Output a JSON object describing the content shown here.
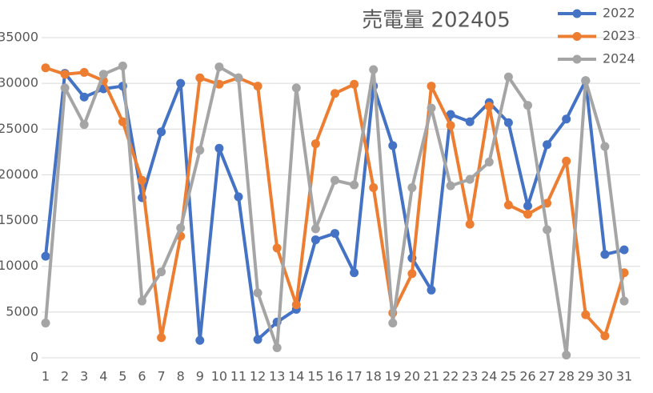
{
  "chart_data": {
    "type": "line",
    "title": "売電量 202405",
    "categories": [
      "1",
      "2",
      "3",
      "4",
      "5",
      "6",
      "7",
      "8",
      "9",
      "10",
      "11",
      "12",
      "13",
      "14",
      "15",
      "16",
      "17",
      "18",
      "19",
      "20",
      "21",
      "22",
      "23",
      "24",
      "25",
      "26",
      "27",
      "28",
      "29",
      "30",
      "31"
    ],
    "series": [
      {
        "name": "2022",
        "color": "#4472c4",
        "values": [
          11100,
          31100,
          28500,
          29400,
          29700,
          17500,
          24700,
          30000,
          1900,
          22900,
          17600,
          2000,
          3900,
          5300,
          12900,
          13600,
          9300,
          29700,
          23200,
          10900,
          7400,
          26600,
          25800,
          27900,
          25700,
          16600,
          23300,
          26100,
          30300,
          11300,
          11800
        ]
      },
      {
        "name": "2023",
        "color": "#ed7d31",
        "values": [
          31700,
          31000,
          31200,
          30300,
          25800,
          19400,
          2200,
          13300,
          30600,
          29900,
          30600,
          29700,
          12000,
          5800,
          23400,
          28900,
          29900,
          18600,
          4900,
          9200,
          29700,
          25400,
          14600,
          27500,
          16700,
          15700,
          16900,
          21500,
          4700,
          2400,
          9300
        ]
      },
      {
        "name": "2024",
        "color": "#a5a5a5",
        "values": [
          3800,
          29500,
          25500,
          31000,
          31900,
          6200,
          9400,
          14200,
          22700,
          31800,
          30600,
          7100,
          1100,
          29500,
          14100,
          19400,
          18900,
          31500,
          3800,
          18600,
          27300,
          18800,
          19500,
          21400,
          30700,
          27600,
          14000,
          300,
          30300,
          23100,
          6200
        ]
      }
    ],
    "ylim": [
      0,
      35000
    ],
    "yticks": [
      0,
      5000,
      10000,
      15000,
      20000,
      25000,
      30000,
      35000
    ],
    "grid": true,
    "legend": "top-right"
  }
}
